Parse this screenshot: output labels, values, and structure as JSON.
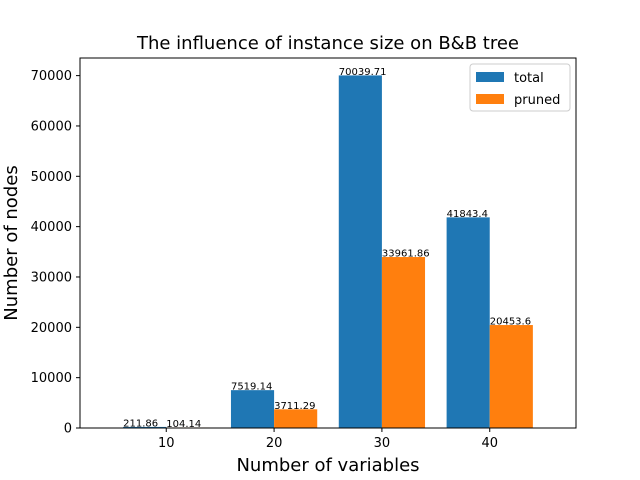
{
  "chart_data": {
    "type": "bar",
    "title": "The influence of instance size on B&B tree",
    "xlabel": "Number of variables",
    "ylabel": "Number of nodes",
    "categories": [
      "10",
      "20",
      "30",
      "40"
    ],
    "series": [
      {
        "name": "total",
        "color": "#1f77b4",
        "values": [
          211.86,
          7519.14,
          70039.71,
          41843.4
        ]
      },
      {
        "name": "pruned",
        "color": "#ff7f0e",
        "values": [
          104.14,
          3711.29,
          33961.86,
          20453.6
        ]
      }
    ],
    "data_labels": [
      [
        "211.86",
        "7519.14",
        "70039.71",
        "41843.4"
      ],
      [
        "104.14",
        "3711.29",
        "33961.86",
        "20453.6"
      ]
    ],
    "ylim": [
      0,
      73500
    ],
    "yticks": [
      0,
      10000,
      20000,
      30000,
      40000,
      50000,
      60000,
      70000
    ],
    "grid": false,
    "legend_position": "top-right"
  }
}
